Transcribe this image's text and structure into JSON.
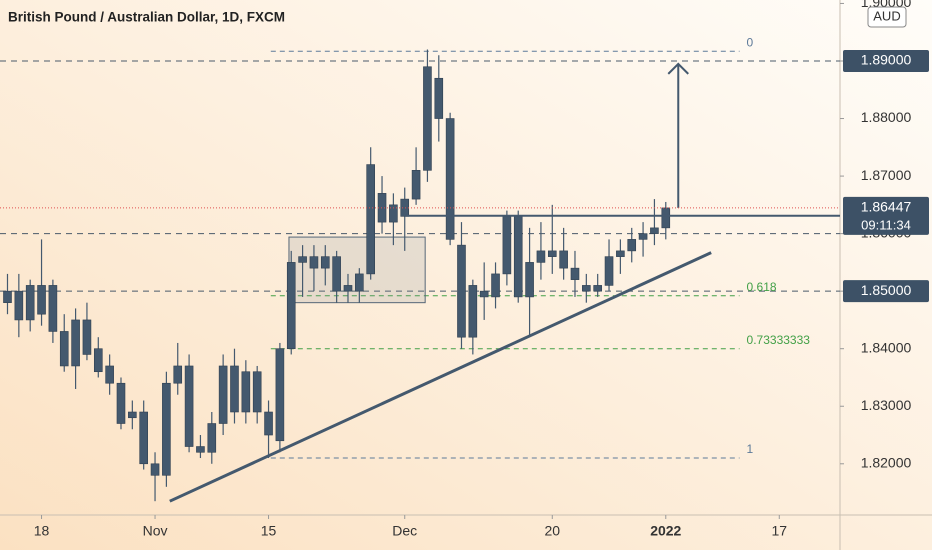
{
  "chart_data": {
    "type": "candlestick",
    "title": "British Pound / Australian Dollar, 1D, FXCM",
    "currency": "AUD",
    "color": "#44596e",
    "xlim": [
      -13.66,
      60.35
    ],
    "ylim": [
      1.8111,
      1.9006
    ],
    "xticks": [
      {
        "value": -10,
        "label": "18"
      },
      {
        "value": 0,
        "label": "Nov"
      },
      {
        "value": 10,
        "label": "15"
      },
      {
        "value": 22,
        "label": "Dec"
      },
      {
        "value": 35,
        "label": "20"
      },
      {
        "value": 45,
        "label": "2022"
      },
      {
        "value": 55,
        "label": "17"
      }
    ],
    "yticks": [
      {
        "value": 1.82,
        "label": "1.82000"
      },
      {
        "value": 1.83,
        "label": "1.83000"
      },
      {
        "value": 1.84,
        "label": "1.84000"
      },
      {
        "value": 1.85,
        "label": "1.85000"
      },
      {
        "value": 1.86,
        "label": "1.86000"
      },
      {
        "value": 1.87,
        "label": "1.87000"
      },
      {
        "value": 1.88,
        "label": "1.88000"
      },
      {
        "value": 1.89,
        "label": "1.89000"
      },
      {
        "value": 1.9,
        "label": "1.90000"
      }
    ],
    "x": [
      -13,
      -12,
      -11,
      -10,
      -9,
      -8,
      -7,
      -6,
      -5,
      -4,
      -3,
      -2,
      -1,
      0,
      1,
      2,
      3,
      4,
      5,
      6,
      7,
      8,
      9,
      10,
      11,
      12,
      13,
      14,
      15,
      16,
      17,
      18,
      19,
      20,
      21,
      22,
      23,
      24,
      25,
      26,
      27,
      28,
      29,
      30,
      31,
      32,
      33,
      34,
      35,
      36,
      37,
      38,
      39,
      40,
      41,
      42,
      43,
      44,
      45
    ],
    "open": [
      1.848,
      1.85,
      1.845,
      1.846,
      1.851,
      1.843,
      1.837,
      1.845,
      1.84,
      1.837,
      1.834,
      1.828,
      1.829,
      1.82,
      1.818,
      1.834,
      1.837,
      1.823,
      1.822,
      1.827,
      1.837,
      1.829,
      1.836,
      1.829,
      1.824,
      1.84,
      1.855,
      1.856,
      1.854,
      1.856,
      1.85,
      1.85,
      1.853,
      1.862,
      1.865,
      1.863,
      1.866,
      1.871,
      1.887,
      1.88,
      1.858,
      1.842,
      1.85,
      1.849,
      1.853,
      1.863,
      1.849,
      1.855,
      1.857,
      1.857,
      1.854,
      1.851,
      1.85,
      1.851,
      1.856,
      1.857,
      1.859,
      1.86,
      1.861
    ],
    "high": [
      1.853,
      1.853,
      1.852,
      1.859,
      1.852,
      1.846,
      1.847,
      1.848,
      1.842,
      1.839,
      1.835,
      1.831,
      1.831,
      1.822,
      1.836,
      1.841,
      1.839,
      1.825,
      1.829,
      1.839,
      1.84,
      1.838,
      1.837,
      1.831,
      1.841,
      1.857,
      1.858,
      1.858,
      1.858,
      1.857,
      1.853,
      1.854,
      1.875,
      1.87,
      1.867,
      1.868,
      1.875,
      1.892,
      1.891,
      1.881,
      1.862,
      1.852,
      1.855,
      1.855,
      1.864,
      1.864,
      1.861,
      1.862,
      1.865,
      1.861,
      1.857,
      1.853,
      1.853,
      1.859,
      1.859,
      1.861,
      1.862,
      1.866,
      1.8655
    ],
    "low": [
      1.846,
      1.842,
      1.843,
      1.844,
      1.841,
      1.836,
      1.833,
      1.838,
      1.835,
      1.832,
      1.826,
      1.826,
      1.819,
      1.8135,
      1.816,
      1.832,
      1.822,
      1.821,
      1.82,
      1.825,
      1.827,
      1.827,
      1.827,
      1.821,
      1.822,
      1.839,
      1.849,
      1.85,
      1.851,
      1.848,
      1.848,
      1.848,
      1.852,
      1.86,
      1.858,
      1.857,
      1.865,
      1.869,
      1.876,
      1.858,
      1.84,
      1.839,
      1.845,
      1.847,
      1.851,
      1.848,
      1.842,
      1.852,
      1.853,
      1.852,
      1.849,
      1.848,
      1.849,
      1.85,
      1.853,
      1.855,
      1.856,
      1.858,
      1.859
    ],
    "close": [
      1.85,
      1.845,
      1.851,
      1.851,
      1.843,
      1.837,
      1.845,
      1.839,
      1.836,
      1.834,
      1.827,
      1.829,
      1.82,
      1.818,
      1.834,
      1.837,
      1.823,
      1.822,
      1.827,
      1.837,
      1.829,
      1.836,
      1.829,
      1.825,
      1.84,
      1.855,
      1.856,
      1.854,
      1.856,
      1.85,
      1.851,
      1.853,
      1.872,
      1.867,
      1.862,
      1.866,
      1.871,
      1.889,
      1.88,
      1.859,
      1.842,
      1.851,
      1.849,
      1.853,
      1.863,
      1.849,
      1.855,
      1.857,
      1.856,
      1.854,
      1.852,
      1.85,
      1.851,
      1.856,
      1.857,
      1.859,
      1.86,
      1.861,
      1.86447
    ],
    "levels": [
      1.89,
      1.86,
      1.85
    ],
    "fib": {
      "x": [
        10.2,
        51.5
      ],
      "levels": [
        {
          "label": "0",
          "price": 1.8917,
          "color": "#5d7a99"
        },
        {
          "label": "0.618",
          "price": 1.8492,
          "color": "#43a047"
        },
        {
          "label": "0.73333333",
          "price": 1.84,
          "color": "#43a047"
        },
        {
          "label": "1",
          "price": 1.821,
          "color": "#5d7a99"
        }
      ]
    },
    "resistance": {
      "x": 22,
      "price": 1.8631
    },
    "rectangle": {
      "x": [
        11.8,
        23.8
      ],
      "price": [
        1.8594,
        1.848
      ]
    },
    "trendline": {
      "x": [
        1.3,
        49
      ],
      "price": [
        1.8135,
        1.8567
      ]
    },
    "arrow": {
      "x": 46.1,
      "price": [
        1.86447,
        1.8895
      ]
    },
    "price_markers": [
      {
        "value": 1.89,
        "label": "1.89000"
      },
      {
        "value": 1.85,
        "label": "1.85000"
      },
      {
        "value": 1.86447,
        "label": "1.86447",
        "countdown": "09:11:34"
      }
    ]
  }
}
